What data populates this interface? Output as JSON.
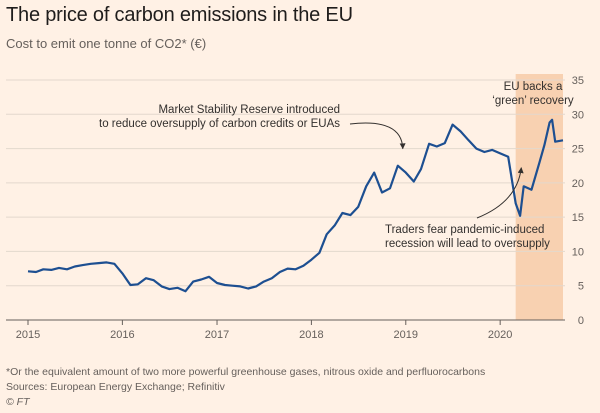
{
  "header": {
    "title": "The price of carbon emissions in the EU",
    "subtitle": "Cost to emit one tonne of CO2* (€)"
  },
  "footer": {
    "footnote": "*Or the equivalent amount of two more powerful greenhouse gases, nitrous oxide and perfluorocarbons",
    "sources": "Sources: European Energy Exchange; Refinitiv",
    "copyright": "© FT"
  },
  "colors": {
    "background": "#fff1e5",
    "line": "#1d4f91",
    "highlight": "#f6c9a4",
    "grid": "#e3d8cd",
    "text": "#33302e"
  },
  "chart_data": {
    "type": "line",
    "title": "The price of carbon emissions in the EU",
    "subtitle": "Cost to emit one tonne of CO2* (€)",
    "ylabel": "",
    "xlabel": "",
    "ylim": [
      0,
      35
    ],
    "xlim": [
      "2015-01-01",
      "2020-08-31"
    ],
    "y_axis_position": "right",
    "grid": "horizontal",
    "y_ticks": [
      "0",
      "5",
      "10",
      "15",
      "20",
      "25",
      "30",
      "35"
    ],
    "x_ticks": [
      "2015",
      "2016",
      "2017",
      "2018",
      "2019",
      "2020"
    ],
    "highlight_band": {
      "from": "2020-03-01",
      "to": "2020-08-31"
    },
    "series": [
      {
        "name": "",
        "points": [
          [
            "2015-01-01",
            7.1
          ],
          [
            "2015-02-01",
            7.0
          ],
          [
            "2015-03-01",
            7.4
          ],
          [
            "2015-04-01",
            7.3
          ],
          [
            "2015-05-01",
            7.6
          ],
          [
            "2015-06-01",
            7.4
          ],
          [
            "2015-07-01",
            7.8
          ],
          [
            "2015-08-01",
            8.0
          ],
          [
            "2015-09-01",
            8.2
          ],
          [
            "2015-10-01",
            8.3
          ],
          [
            "2015-11-01",
            8.4
          ],
          [
            "2015-12-01",
            8.2
          ],
          [
            "2016-01-01",
            6.8
          ],
          [
            "2016-02-01",
            5.1
          ],
          [
            "2016-03-01",
            5.2
          ],
          [
            "2016-04-01",
            6.1
          ],
          [
            "2016-05-01",
            5.8
          ],
          [
            "2016-06-01",
            4.9
          ],
          [
            "2016-07-01",
            4.5
          ],
          [
            "2016-08-01",
            4.7
          ],
          [
            "2016-09-01",
            4.2
          ],
          [
            "2016-10-01",
            5.6
          ],
          [
            "2016-11-01",
            5.9
          ],
          [
            "2016-12-01",
            6.3
          ],
          [
            "2017-01-01",
            5.4
          ],
          [
            "2017-02-01",
            5.1
          ],
          [
            "2017-03-01",
            5.0
          ],
          [
            "2017-04-01",
            4.9
          ],
          [
            "2017-05-01",
            4.6
          ],
          [
            "2017-06-01",
            4.9
          ],
          [
            "2017-07-01",
            5.6
          ],
          [
            "2017-08-01",
            6.1
          ],
          [
            "2017-09-01",
            7.0
          ],
          [
            "2017-10-01",
            7.5
          ],
          [
            "2017-11-01",
            7.4
          ],
          [
            "2017-12-01",
            7.9
          ],
          [
            "2018-01-01",
            8.8
          ],
          [
            "2018-02-01",
            9.8
          ],
          [
            "2018-03-01",
            12.5
          ],
          [
            "2018-04-01",
            13.8
          ],
          [
            "2018-05-01",
            15.6
          ],
          [
            "2018-06-01",
            15.3
          ],
          [
            "2018-07-01",
            16.5
          ],
          [
            "2018-08-01",
            19.5
          ],
          [
            "2018-09-01",
            21.5
          ],
          [
            "2018-10-01",
            18.6
          ],
          [
            "2018-11-01",
            19.2
          ],
          [
            "2018-12-01",
            22.5
          ],
          [
            "2019-01-01",
            21.5
          ],
          [
            "2019-02-01",
            20.2
          ],
          [
            "2019-03-01",
            22.0
          ],
          [
            "2019-04-01",
            25.7
          ],
          [
            "2019-05-01",
            25.3
          ],
          [
            "2019-06-01",
            25.8
          ],
          [
            "2019-07-01",
            28.5
          ],
          [
            "2019-08-01",
            27.5
          ],
          [
            "2019-09-01",
            26.2
          ],
          [
            "2019-10-01",
            25.0
          ],
          [
            "2019-11-01",
            24.5
          ],
          [
            "2019-12-01",
            24.8
          ],
          [
            "2020-01-01",
            24.3
          ],
          [
            "2020-02-01",
            23.8
          ],
          [
            "2020-03-01",
            17.0
          ],
          [
            "2020-03-18",
            15.2
          ],
          [
            "2020-04-01",
            19.5
          ],
          [
            "2020-05-01",
            19.0
          ],
          [
            "2020-06-01",
            23.0
          ],
          [
            "2020-06-20",
            25.5
          ],
          [
            "2020-07-10",
            28.8
          ],
          [
            "2020-07-20",
            29.2
          ],
          [
            "2020-08-01",
            26.0
          ],
          [
            "2020-08-31",
            26.2
          ]
        ]
      }
    ],
    "annotations": [
      {
        "lines": [
          "Market Stability Reserve introduced",
          "to reduce oversupply of carbon credits or EUAs"
        ],
        "date": "2019-01-01",
        "value": 24.4
      },
      {
        "lines": [
          "Traders fear pandemic-induced",
          "recession will lead to oversupply"
        ],
        "date": "2020-03-15",
        "value": 22.5
      },
      {
        "lines": [
          "EU backs a",
          "‘green’ recovery"
        ],
        "date": "2020-06-01",
        "value": 31.0
      }
    ]
  }
}
